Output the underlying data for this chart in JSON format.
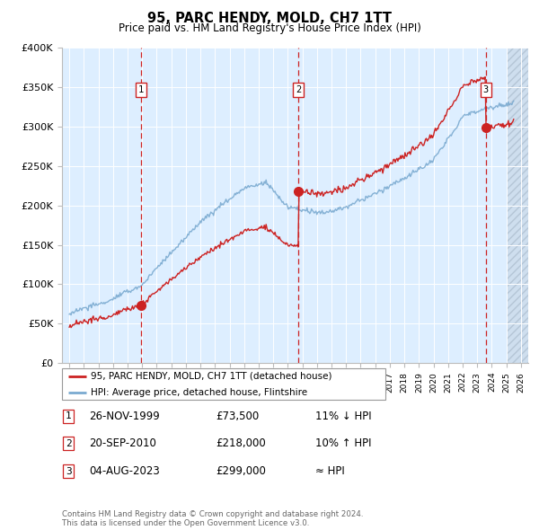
{
  "title": "95, PARC HENDY, MOLD, CH7 1TT",
  "subtitle": "Price paid vs. HM Land Registry's House Price Index (HPI)",
  "legend_line1": "95, PARC HENDY, MOLD, CH7 1TT (detached house)",
  "legend_line2": "HPI: Average price, detached house, Flintshire",
  "transactions": [
    {
      "num": 1,
      "date": "26-NOV-1999",
      "price": 73500,
      "year": 1999.9
    },
    {
      "num": 2,
      "date": "20-SEP-2010",
      "price": 218000,
      "year": 2010.72
    },
    {
      "num": 3,
      "date": "04-AUG-2023",
      "price": 299000,
      "year": 2023.59
    }
  ],
  "table_rows": [
    {
      "num": 1,
      "date": "26-NOV-1999",
      "price": "£73,500",
      "rel": "11% ↓ HPI"
    },
    {
      "num": 2,
      "date": "20-SEP-2010",
      "price": "£218,000",
      "rel": "10% ↑ HPI"
    },
    {
      "num": 3,
      "date": "04-AUG-2023",
      "price": "£299,000",
      "rel": "≈ HPI"
    }
  ],
  "footer": "Contains HM Land Registry data © Crown copyright and database right 2024.\nThis data is licensed under the Open Government Licence v3.0.",
  "ylim": [
    0,
    400000
  ],
  "xlim_start": 1994.5,
  "xlim_end": 2026.5,
  "yticks": [
    0,
    50000,
    100000,
    150000,
    200000,
    250000,
    300000,
    350000,
    400000
  ],
  "ytick_labels": [
    "£0",
    "£50K",
    "£100K",
    "£150K",
    "£200K",
    "£250K",
    "£300K",
    "£350K",
    "£400K"
  ],
  "xticks": [
    1995,
    1996,
    1997,
    1998,
    1999,
    2000,
    2001,
    2002,
    2003,
    2004,
    2005,
    2006,
    2007,
    2008,
    2009,
    2010,
    2011,
    2012,
    2013,
    2014,
    2015,
    2016,
    2017,
    2018,
    2019,
    2020,
    2021,
    2022,
    2023,
    2024,
    2025,
    2026
  ],
  "hpi_color": "#7aaad0",
  "price_color": "#cc2222",
  "dashed_color": "#cc2222",
  "bg_plot": "#ddeeff",
  "bg_fig": "#ffffff",
  "grid_color": "#ffffff",
  "future_start": 2025.0
}
